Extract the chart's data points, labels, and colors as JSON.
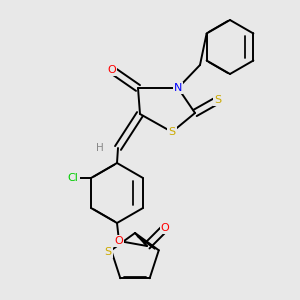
{
  "bg_color": "#e8e8e8",
  "colors": {
    "N": "#0000ff",
    "O": "#ff0000",
    "S": "#ccaa00",
    "Cl": "#00cc00",
    "H": "#888888",
    "bond": "#000000"
  },
  "lw": 1.4,
  "lw_double_inner": 1.2
}
